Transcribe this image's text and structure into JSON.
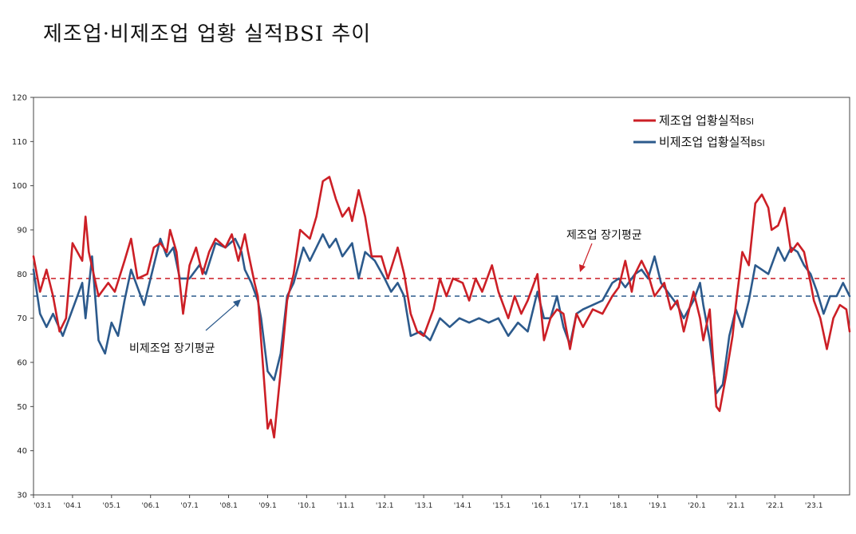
{
  "title": "제조업·비제조업 업황 실적BSI 추이",
  "chart_data": {
    "type": "line",
    "ylim": [
      30,
      120
    ],
    "yticks": [
      "30",
      "40",
      "50",
      "60",
      "70",
      "80",
      "90",
      "100",
      "110",
      "120"
    ],
    "x_tick_labels": [
      "'03.1",
      "'04.1",
      "'05.1",
      "'06.1",
      "'07.1",
      "'08.1",
      "'09.1",
      "'10.1",
      "'11.1",
      "'12.1",
      "'13.1",
      "'14.1",
      "'15.1",
      "'16.1",
      "'17.1",
      "'18.1",
      "'19.1",
      "'20.1",
      "'21.1",
      "'22.1",
      "'23.1"
    ],
    "x_start": "2003-01",
    "x_end": "2023-12",
    "legend": {
      "placement": "top-right",
      "manufacturing_main": "제조업 업황실적",
      "manufacturing_sub": "BSI",
      "nonmanufacturing_main": "비제조업 업황실적",
      "nonmanufacturing_sub": "BSI"
    },
    "colors": {
      "manufacturing": "#cc1f26",
      "nonmanufacturing": "#2c5a8c"
    },
    "series": [
      {
        "name": "제조업 업황실적BSI",
        "anchors": [
          [
            "2003-01",
            84
          ],
          [
            "2003-03",
            76
          ],
          [
            "2003-05",
            81
          ],
          [
            "2003-07",
            75
          ],
          [
            "2003-09",
            67
          ],
          [
            "2003-11",
            70
          ],
          [
            "2004-01",
            87
          ],
          [
            "2004-04",
            83
          ],
          [
            "2004-05",
            93
          ],
          [
            "2004-06",
            85
          ],
          [
            "2004-09",
            75
          ],
          [
            "2004-12",
            78
          ],
          [
            "2005-02",
            76
          ],
          [
            "2005-05",
            83
          ],
          [
            "2005-07",
            88
          ],
          [
            "2005-09",
            79
          ],
          [
            "2005-12",
            80
          ],
          [
            "2006-02",
            86
          ],
          [
            "2006-04",
            87
          ],
          [
            "2006-06",
            85
          ],
          [
            "2006-07",
            90
          ],
          [
            "2006-09",
            85
          ],
          [
            "2006-11",
            71
          ],
          [
            "2007-01",
            82
          ],
          [
            "2007-03",
            86
          ],
          [
            "2007-05",
            80
          ],
          [
            "2007-07",
            85
          ],
          [
            "2007-09",
            88
          ],
          [
            "2007-12",
            86
          ],
          [
            "2008-02",
            89
          ],
          [
            "2008-04",
            83
          ],
          [
            "2008-06",
            89
          ],
          [
            "2008-07",
            85
          ],
          [
            "2008-09",
            78
          ],
          [
            "2008-10",
            75
          ],
          [
            "2008-12",
            55
          ],
          [
            "2009-01",
            45
          ],
          [
            "2009-02",
            47
          ],
          [
            "2009-03",
            43
          ],
          [
            "2009-05",
            58
          ],
          [
            "2009-07",
            74
          ],
          [
            "2009-09",
            80
          ],
          [
            "2009-11",
            90
          ],
          [
            "2010-02",
            88
          ],
          [
            "2010-04",
            93
          ],
          [
            "2010-06",
            101
          ],
          [
            "2010-08",
            102
          ],
          [
            "2010-10",
            97
          ],
          [
            "2010-12",
            93
          ],
          [
            "2011-02",
            95
          ],
          [
            "2011-03",
            92
          ],
          [
            "2011-05",
            99
          ],
          [
            "2011-07",
            93
          ],
          [
            "2011-09",
            84
          ],
          [
            "2011-12",
            84
          ],
          [
            "2012-02",
            79
          ],
          [
            "2012-05",
            86
          ],
          [
            "2012-07",
            80
          ],
          [
            "2012-09",
            71
          ],
          [
            "2012-11",
            67
          ],
          [
            "2013-01",
            66
          ],
          [
            "2013-04",
            72
          ],
          [
            "2013-06",
            79
          ],
          [
            "2013-08",
            75
          ],
          [
            "2013-10",
            79
          ],
          [
            "2014-01",
            78
          ],
          [
            "2014-03",
            74
          ],
          [
            "2014-05",
            79
          ],
          [
            "2014-07",
            76
          ],
          [
            "2014-10",
            82
          ],
          [
            "2014-12",
            76
          ],
          [
            "2015-03",
            70
          ],
          [
            "2015-05",
            75
          ],
          [
            "2015-07",
            71
          ],
          [
            "2015-09",
            74
          ],
          [
            "2015-12",
            80
          ],
          [
            "2016-02",
            65
          ],
          [
            "2016-04",
            70
          ],
          [
            "2016-06",
            72
          ],
          [
            "2016-08",
            71
          ],
          [
            "2016-10",
            63
          ],
          [
            "2016-12",
            71
          ],
          [
            "2017-02",
            68
          ],
          [
            "2017-05",
            72
          ],
          [
            "2017-08",
            71
          ],
          [
            "2017-11",
            75
          ],
          [
            "2018-01",
            77
          ],
          [
            "2018-03",
            83
          ],
          [
            "2018-05",
            76
          ],
          [
            "2018-06",
            80
          ],
          [
            "2018-08",
            83
          ],
          [
            "2018-10",
            80
          ],
          [
            "2018-12",
            75
          ],
          [
            "2019-03",
            78
          ],
          [
            "2019-05",
            72
          ],
          [
            "2019-07",
            74
          ],
          [
            "2019-09",
            67
          ],
          [
            "2019-12",
            76
          ],
          [
            "2020-02",
            70
          ],
          [
            "2020-03",
            65
          ],
          [
            "2020-05",
            72
          ],
          [
            "2020-07",
            50
          ],
          [
            "2020-08",
            49
          ],
          [
            "2020-10",
            57
          ],
          [
            "2020-12",
            66
          ],
          [
            "2021-01",
            73
          ],
          [
            "2021-03",
            85
          ],
          [
            "2021-05",
            82
          ],
          [
            "2021-07",
            96
          ],
          [
            "2021-09",
            98
          ],
          [
            "2021-11",
            95
          ],
          [
            "2021-12",
            90
          ],
          [
            "2022-02",
            91
          ],
          [
            "2022-04",
            95
          ],
          [
            "2022-06",
            85
          ],
          [
            "2022-08",
            87
          ],
          [
            "2022-10",
            85
          ],
          [
            "2022-12",
            78
          ],
          [
            "2023-01",
            74
          ],
          [
            "2023-03",
            70
          ],
          [
            "2023-05",
            63
          ],
          [
            "2023-07",
            70
          ],
          [
            "2023-09",
            73
          ],
          [
            "2023-11",
            72
          ],
          [
            "2023-12",
            67
          ]
        ]
      },
      {
        "name": "비제조업 업황실적BSI",
        "anchors": [
          [
            "2003-01",
            81
          ],
          [
            "2003-03",
            71
          ],
          [
            "2003-05",
            68
          ],
          [
            "2003-07",
            71
          ],
          [
            "2003-10",
            66
          ],
          [
            "2004-01",
            72
          ],
          [
            "2004-04",
            78
          ],
          [
            "2004-05",
            70
          ],
          [
            "2004-07",
            84
          ],
          [
            "2004-09",
            65
          ],
          [
            "2004-11",
            62
          ],
          [
            "2005-01",
            69
          ],
          [
            "2005-03",
            66
          ],
          [
            "2005-05",
            74
          ],
          [
            "2005-07",
            81
          ],
          [
            "2005-09",
            77
          ],
          [
            "2005-11",
            73
          ],
          [
            "2006-02",
            82
          ],
          [
            "2006-04",
            88
          ],
          [
            "2006-06",
            84
          ],
          [
            "2006-08",
            86
          ],
          [
            "2006-10",
            79
          ],
          [
            "2007-01",
            79
          ],
          [
            "2007-04",
            82
          ],
          [
            "2007-06",
            80
          ],
          [
            "2007-09",
            87
          ],
          [
            "2007-12",
            86
          ],
          [
            "2008-03",
            88
          ],
          [
            "2008-05",
            85
          ],
          [
            "2008-06",
            81
          ],
          [
            "2008-08",
            78
          ],
          [
            "2008-10",
            74
          ],
          [
            "2008-11",
            70
          ],
          [
            "2009-01",
            58
          ],
          [
            "2009-03",
            56
          ],
          [
            "2009-05",
            62
          ],
          [
            "2009-07",
            75
          ],
          [
            "2009-09",
            78
          ],
          [
            "2009-12",
            86
          ],
          [
            "2010-02",
            83
          ],
          [
            "2010-04",
            86
          ],
          [
            "2010-06",
            89
          ],
          [
            "2010-08",
            86
          ],
          [
            "2010-10",
            88
          ],
          [
            "2010-12",
            84
          ],
          [
            "2011-03",
            87
          ],
          [
            "2011-05",
            79
          ],
          [
            "2011-07",
            85
          ],
          [
            "2011-10",
            83
          ],
          [
            "2012-01",
            79
          ],
          [
            "2012-03",
            76
          ],
          [
            "2012-05",
            78
          ],
          [
            "2012-07",
            75
          ],
          [
            "2012-09",
            66
          ],
          [
            "2012-12",
            67
          ],
          [
            "2013-03",
            65
          ],
          [
            "2013-06",
            70
          ],
          [
            "2013-09",
            68
          ],
          [
            "2013-12",
            70
          ],
          [
            "2014-03",
            69
          ],
          [
            "2014-06",
            70
          ],
          [
            "2014-09",
            69
          ],
          [
            "2014-12",
            70
          ],
          [
            "2015-03",
            66
          ],
          [
            "2015-06",
            69
          ],
          [
            "2015-09",
            67
          ],
          [
            "2015-12",
            76
          ],
          [
            "2016-02",
            70
          ],
          [
            "2016-04",
            70
          ],
          [
            "2016-06",
            75
          ],
          [
            "2016-08",
            68
          ],
          [
            "2016-10",
            64
          ],
          [
            "2016-12",
            71
          ],
          [
            "2017-02",
            72
          ],
          [
            "2017-05",
            73
          ],
          [
            "2017-08",
            74
          ],
          [
            "2017-11",
            78
          ],
          [
            "2018-01",
            79
          ],
          [
            "2018-03",
            77
          ],
          [
            "2018-06",
            80
          ],
          [
            "2018-08",
            81
          ],
          [
            "2018-10",
            79
          ],
          [
            "2018-12",
            84
          ],
          [
            "2019-02",
            78
          ],
          [
            "2019-04",
            76
          ],
          [
            "2019-07",
            73
          ],
          [
            "2019-09",
            70
          ],
          [
            "2019-12",
            74
          ],
          [
            "2020-02",
            78
          ],
          [
            "2020-03",
            73
          ],
          [
            "2020-05",
            65
          ],
          [
            "2020-07",
            53
          ],
          [
            "2020-09",
            55
          ],
          [
            "2020-11",
            66
          ],
          [
            "2021-01",
            72
          ],
          [
            "2021-03",
            68
          ],
          [
            "2021-05",
            74
          ],
          [
            "2021-07",
            82
          ],
          [
            "2021-09",
            81
          ],
          [
            "2021-11",
            80
          ],
          [
            "2022-02",
            86
          ],
          [
            "2022-04",
            83
          ],
          [
            "2022-06",
            86
          ],
          [
            "2022-08",
            85
          ],
          [
            "2022-10",
            82
          ],
          [
            "2022-12",
            80
          ],
          [
            "2023-02",
            76
          ],
          [
            "2023-04",
            71
          ],
          [
            "2023-06",
            75
          ],
          [
            "2023-08",
            75
          ],
          [
            "2023-10",
            78
          ],
          [
            "2023-12",
            75
          ]
        ]
      }
    ],
    "long_run_averages": [
      {
        "series": "manufacturing",
        "value": 79,
        "label": "제조업 장기평균"
      },
      {
        "series": "nonmanufacturing",
        "value": 75,
        "label": "비제조업 장기평균"
      }
    ]
  }
}
